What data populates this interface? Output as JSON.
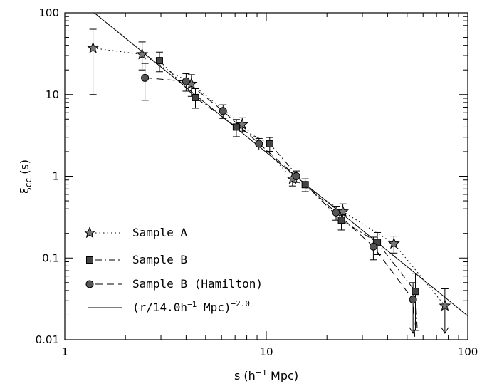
{
  "chart_data": {
    "type": "scatter",
    "title": "",
    "xlabel": "s (h^-1 Mpc)",
    "ylabel": "ξcc (s)",
    "x_scale": "log",
    "y_scale": "log",
    "xlim": [
      1,
      100
    ],
    "ylim": [
      0.01,
      100
    ],
    "x_tick_labels": [
      {
        "value": 1,
        "label": "1"
      },
      {
        "value": 10,
        "label": "10"
      },
      {
        "value": 100,
        "label": "100"
      }
    ],
    "y_tick_labels": [
      {
        "value": 0.01,
        "label": "0.01"
      },
      {
        "value": 0.1,
        "label": "0.1"
      },
      {
        "value": 1,
        "label": "1"
      },
      {
        "value": 10,
        "label": "10"
      },
      {
        "value": 100,
        "label": "100"
      }
    ],
    "grid": false,
    "legend_position": "bottom-left",
    "series": [
      {
        "name": "Sample A",
        "marker": "star",
        "line": "dotted",
        "points": [
          {
            "x": 1.38,
            "y": 37,
            "ylo": 10,
            "yhi": 63
          },
          {
            "x": 2.42,
            "y": 31,
            "ylo": 20,
            "yhi": 44
          },
          {
            "x": 4.25,
            "y": 13.5,
            "ylo": 9.5,
            "yhi": 17.5
          },
          {
            "x": 7.6,
            "y": 4.3,
            "ylo": 3.5,
            "yhi": 5.2
          },
          {
            "x": 13.5,
            "y": 0.93,
            "ylo": 0.76,
            "yhi": 1.12
          },
          {
            "x": 24.0,
            "y": 0.37,
            "ylo": 0.3,
            "yhi": 0.46
          },
          {
            "x": 43.0,
            "y": 0.15,
            "ylo": 0.115,
            "yhi": 0.185
          },
          {
            "x": 77.0,
            "y": 0.026,
            "ylo": 0.012,
            "yhi": 0.042,
            "upper_limit": true
          }
        ]
      },
      {
        "name": "Sample B",
        "marker": "square",
        "line": "dash-dot",
        "points": [
          {
            "x": 2.95,
            "y": 26,
            "ylo": 19,
            "yhi": 33
          },
          {
            "x": 4.45,
            "y": 9.2,
            "ylo": 6.8,
            "yhi": 11.8
          },
          {
            "x": 7.1,
            "y": 4.0,
            "ylo": 3.05,
            "yhi": 4.95
          },
          {
            "x": 10.4,
            "y": 2.5,
            "ylo": 2.02,
            "yhi": 2.98
          },
          {
            "x": 15.6,
            "y": 0.79,
            "ylo": 0.65,
            "yhi": 0.93
          },
          {
            "x": 23.6,
            "y": 0.29,
            "ylo": 0.22,
            "yhi": 0.37
          },
          {
            "x": 35.6,
            "y": 0.155,
            "ylo": 0.11,
            "yhi": 0.205
          },
          {
            "x": 55.0,
            "y": 0.039,
            "ylo": 0.013,
            "yhi": 0.065
          }
        ]
      },
      {
        "name": "Sample B (Hamilton)",
        "marker": "circle",
        "line": "dashed",
        "points": [
          {
            "x": 2.5,
            "y": 16,
            "ylo": 8.5,
            "yhi": 24
          },
          {
            "x": 4.0,
            "y": 14.5,
            "ylo": 11,
            "yhi": 18
          },
          {
            "x": 6.1,
            "y": 6.3,
            "ylo": 5.1,
            "yhi": 7.5
          },
          {
            "x": 9.2,
            "y": 2.5,
            "ylo": 2.1,
            "yhi": 2.9
          },
          {
            "x": 14.1,
            "y": 1.0,
            "ylo": 0.84,
            "yhi": 1.16
          },
          {
            "x": 22.2,
            "y": 0.36,
            "ylo": 0.29,
            "yhi": 0.43
          },
          {
            "x": 34.0,
            "y": 0.138,
            "ylo": 0.095,
            "yhi": 0.18
          },
          {
            "x": 53.5,
            "y": 0.031,
            "ylo": 0.012,
            "yhi": 0.05,
            "upper_limit": true
          }
        ]
      },
      {
        "name": "(r/14.0h^-1 Mpc)^-2.0",
        "marker": "none",
        "line": "solid",
        "fit": {
          "r0": 14.0,
          "gamma": 2.0
        }
      }
    ]
  }
}
